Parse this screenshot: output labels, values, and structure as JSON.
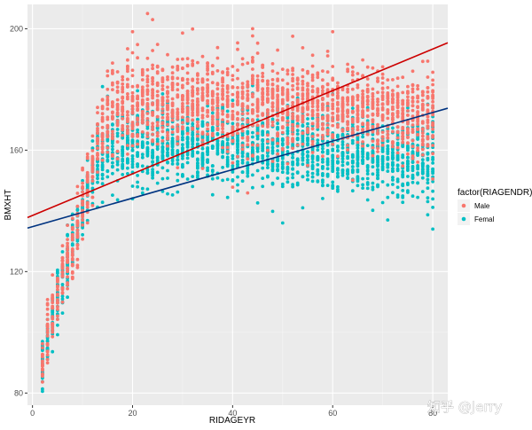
{
  "chart_data": {
    "type": "scatter",
    "title": "",
    "xlabel": "RIDAGEYR",
    "ylabel": "BMXHT",
    "xlim": [
      -1,
      83
    ],
    "ylim": [
      76,
      208
    ],
    "x_ticks": [
      0,
      20,
      40,
      60,
      80
    ],
    "y_ticks": [
      80,
      120,
      160,
      200
    ],
    "grid": true,
    "legend": {
      "title": "factor(RIAGENDR)",
      "position": "right",
      "entries": [
        {
          "label": "Male",
          "color": "#F8766D"
        },
        {
          "label": "Femal",
          "color": "#00BFC4"
        }
      ]
    },
    "series": [
      {
        "name": "Male",
        "color": "#F8766D",
        "mean_height_by_age": [
          [
            2,
            91
          ],
          [
            3,
            98
          ],
          [
            4,
            105
          ],
          [
            5,
            112
          ],
          [
            6,
            118
          ],
          [
            7,
            124
          ],
          [
            8,
            130
          ],
          [
            9,
            136
          ],
          [
            10,
            142
          ],
          [
            11,
            148
          ],
          [
            12,
            154
          ],
          [
            13,
            161
          ],
          [
            14,
            167
          ],
          [
            15,
            171
          ],
          [
            16,
            174
          ],
          [
            17,
            175
          ],
          [
            18,
            176
          ],
          [
            20,
            176
          ],
          [
            30,
            176
          ],
          [
            40,
            176
          ],
          [
            50,
            175
          ],
          [
            60,
            174
          ],
          [
            70,
            172
          ],
          [
            80,
            170
          ]
        ],
        "spread_sd": 7.2,
        "fit_line": {
          "intercept": 138.5,
          "slope": 0.685,
          "color": "#CC0000"
        }
      },
      {
        "name": "Femal",
        "color": "#00BFC4",
        "mean_height_by_age": [
          [
            2,
            90
          ],
          [
            3,
            97
          ],
          [
            4,
            104
          ],
          [
            5,
            111
          ],
          [
            6,
            117
          ],
          [
            7,
            123
          ],
          [
            8,
            129
          ],
          [
            9,
            135
          ],
          [
            10,
            141
          ],
          [
            11,
            147
          ],
          [
            12,
            153
          ],
          [
            13,
            157
          ],
          [
            14,
            160
          ],
          [
            15,
            161
          ],
          [
            16,
            162
          ],
          [
            18,
            162
          ],
          [
            20,
            162
          ],
          [
            30,
            162
          ],
          [
            40,
            162
          ],
          [
            50,
            161
          ],
          [
            60,
            160
          ],
          [
            70,
            158
          ],
          [
            80,
            156
          ]
        ],
        "spread_sd": 6.5,
        "fit_line": {
          "intercept": 134.8,
          "slope": 0.47,
          "color": "#003380"
        }
      }
    ],
    "notable_points": [
      {
        "series": "Male",
        "x": 23,
        "y": 205
      },
      {
        "series": "Male",
        "x": 24,
        "y": 203
      },
      {
        "series": "Male",
        "x": 20,
        "y": 199
      },
      {
        "series": "Male",
        "x": 44,
        "y": 200
      },
      {
        "series": "Male",
        "x": 60,
        "y": 199
      },
      {
        "series": "Femal",
        "x": 50,
        "y": 136
      },
      {
        "series": "Femal",
        "x": 71,
        "y": 137
      },
      {
        "series": "Femal",
        "x": 80,
        "y": 134
      },
      {
        "series": "Femal",
        "x": 20,
        "y": 144
      },
      {
        "series": "Femal",
        "x": 54,
        "y": 141
      }
    ]
  },
  "watermark": "知乎 @Jerry"
}
